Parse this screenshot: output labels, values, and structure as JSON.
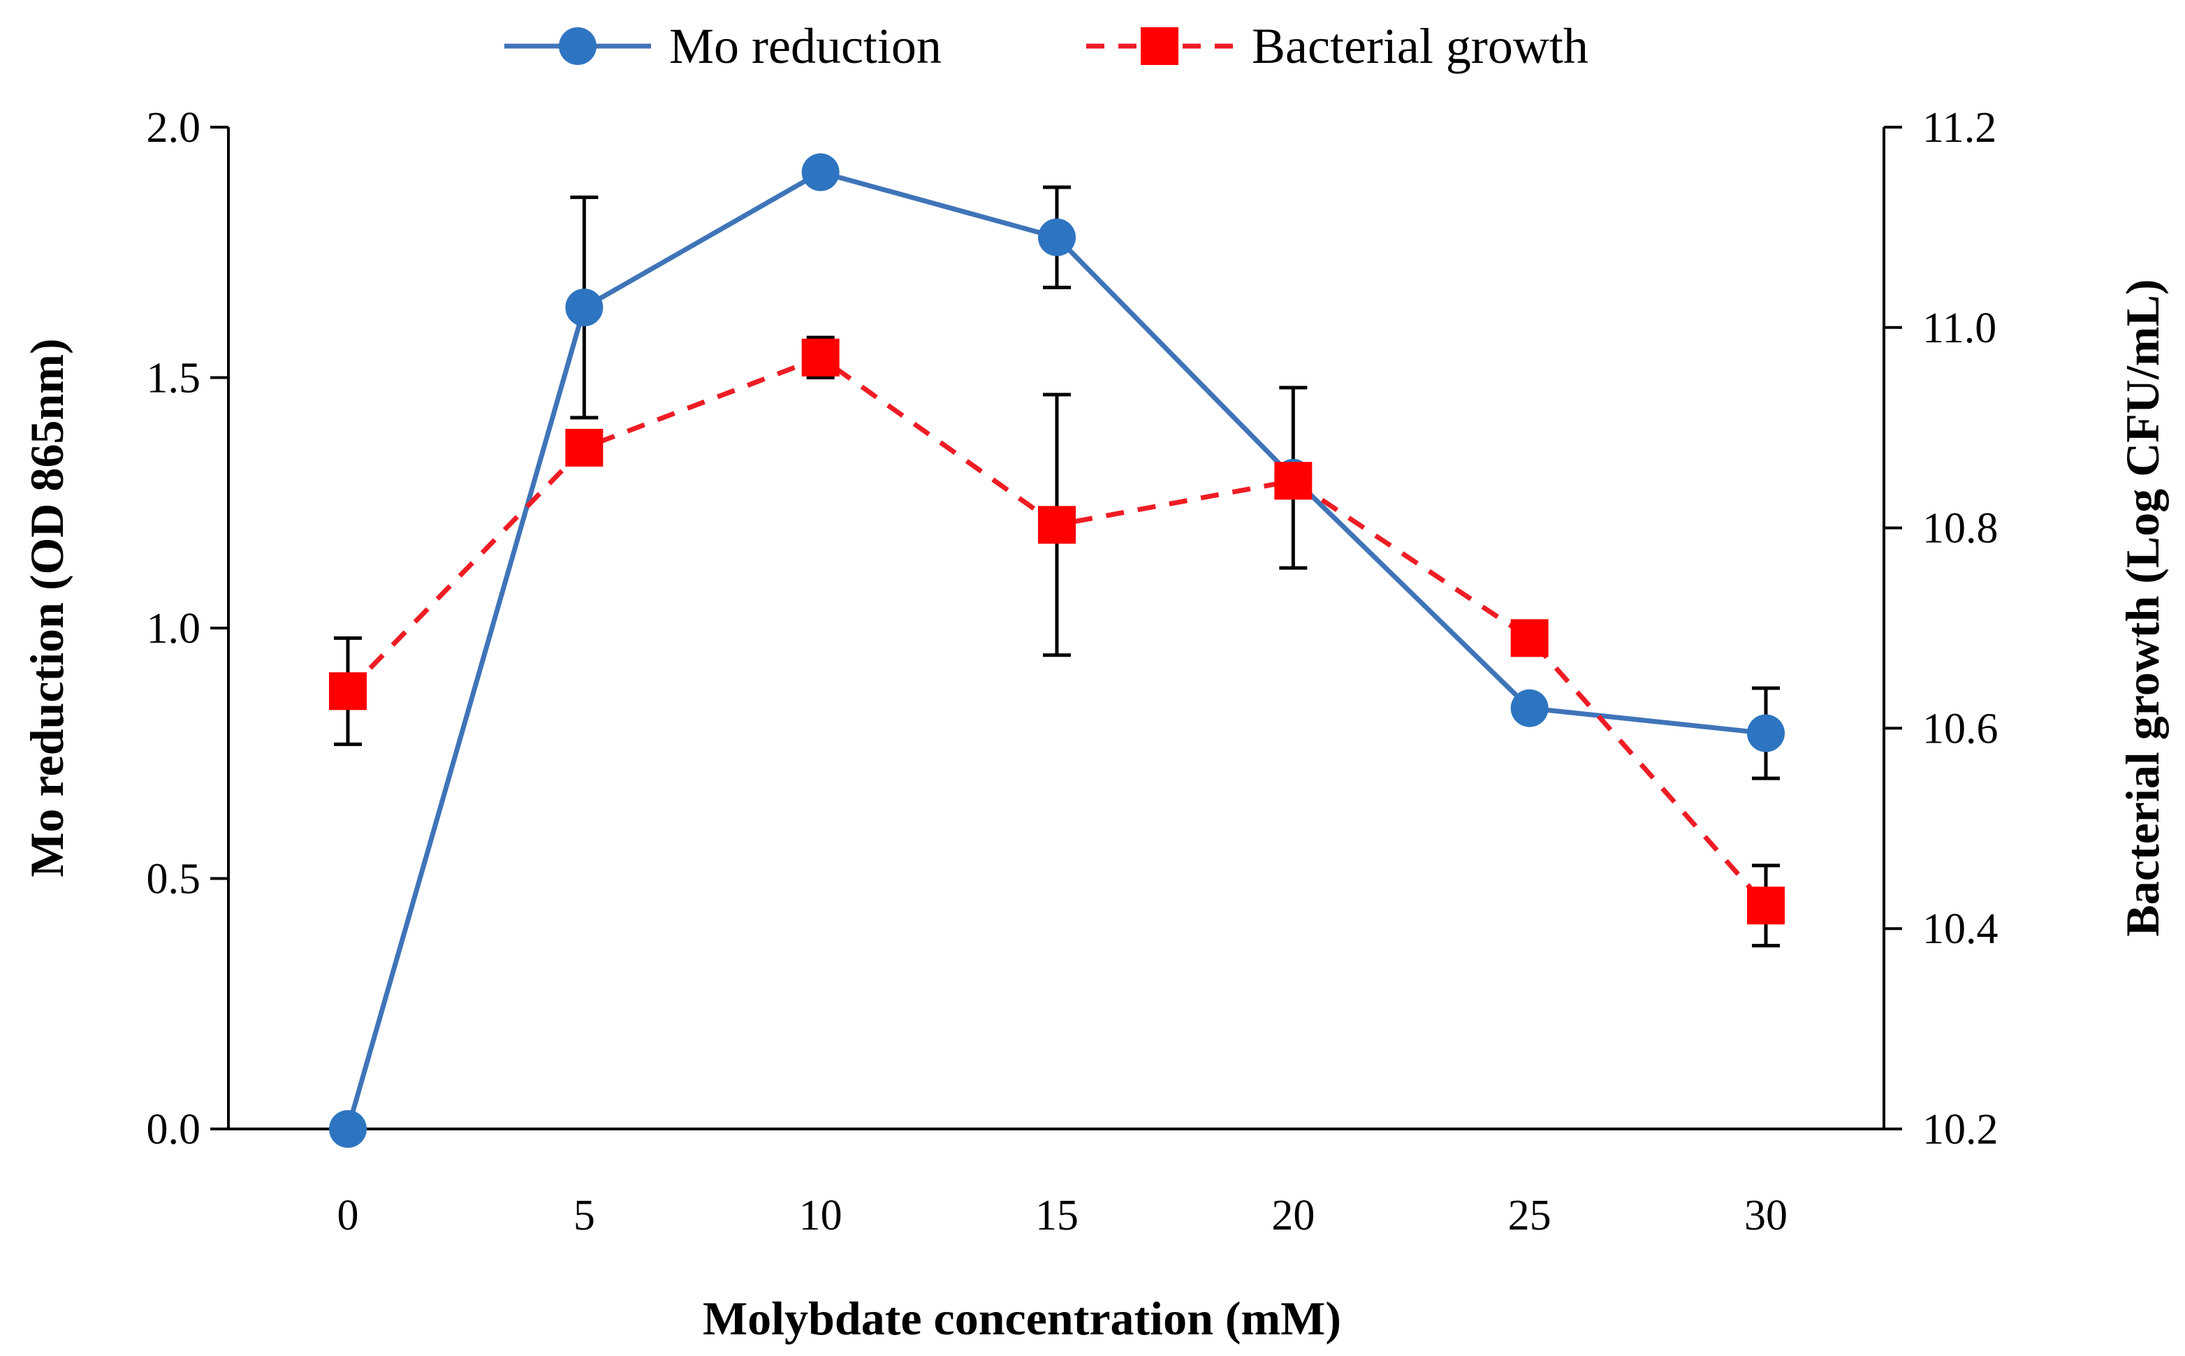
{
  "chart_data": {
    "type": "line",
    "title": "",
    "xlabel": "Molybdate concentration (mM)",
    "ylabel": "Mo reduction (OD 865nm)",
    "y2label": "Bacterial growth (Log CFU/mL)",
    "x": [
      0,
      5,
      10,
      15,
      20,
      25,
      30
    ],
    "xticks": [
      "0",
      "5",
      "10",
      "15",
      "20",
      "25",
      "30"
    ],
    "ylim": [
      0,
      2.0
    ],
    "yticks": [
      "0.0",
      "0.5",
      "1.0",
      "1.5",
      "2.0"
    ],
    "y2lim": [
      10.2,
      11.2
    ],
    "y2ticks": [
      "10.2",
      "10.4",
      "10.6",
      "10.8",
      "11.0",
      "11.2"
    ],
    "legend_position": "top",
    "grid": false,
    "series": [
      {
        "name": "Mo reduction",
        "axis": "left",
        "color": "#3f74b8",
        "marker_color": "#2e75c1",
        "line_style": "solid",
        "marker": "circle",
        "values": [
          0.0,
          1.64,
          1.91,
          1.78,
          1.3,
          0.84,
          0.79
        ],
        "errors": [
          null,
          0.22,
          null,
          0.1,
          0.18,
          null,
          0.09
        ]
      },
      {
        "name": "Bacterial growth",
        "axis": "right",
        "color": "#ee1c24",
        "marker_color": "#ff0000",
        "line_style": "dashed",
        "marker": "square",
        "values": [
          10.637,
          10.88,
          10.97,
          10.803,
          10.847,
          10.69,
          10.423
        ],
        "errors": [
          0.053,
          null,
          0.02,
          0.13,
          null,
          null,
          0.04
        ]
      }
    ]
  }
}
